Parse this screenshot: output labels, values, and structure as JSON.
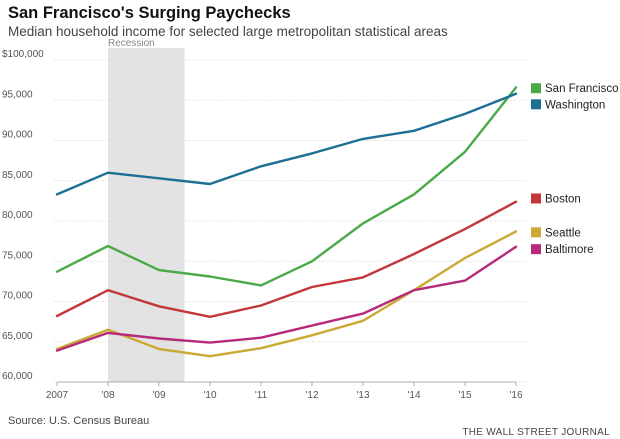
{
  "header": {
    "title": "San Francisco's Surging Paychecks",
    "subtitle": "Median household income for selected large metropolitan statistical areas"
  },
  "footer": {
    "source": "Source: U.S. Census Bureau",
    "publisher": "THE WALL STREET JOURNAL"
  },
  "chart_data": {
    "type": "line",
    "title": "San Francisco's Surging Paychecks",
    "subtitle": "Median household income for selected large metropolitan statistical areas",
    "x": [
      2007,
      2008,
      2009,
      2010,
      2011,
      2012,
      2013,
      2014,
      2015,
      2016
    ],
    "x_tick_labels": [
      "2007",
      "'08",
      "'09",
      "'10",
      "'11",
      "'12",
      "'13",
      "'14",
      "'15",
      "'16"
    ],
    "y_tick_values": [
      60000,
      65000,
      70000,
      75000,
      80000,
      85000,
      90000,
      95000,
      100000
    ],
    "y_tick_labels": [
      "60,000",
      "65,000",
      "70,000",
      "75,000",
      "80,000",
      "85,000",
      "90,000",
      "95,000",
      "$100,000"
    ],
    "ylim": [
      60000,
      100000
    ],
    "xlim": [
      2007,
      2016
    ],
    "grid": "horizontal",
    "legend": "right, labels at line ends",
    "shaded_region": {
      "label": "Recession",
      "x_start": 2008,
      "x_end": 2009.5,
      "color": "#e3e3e3"
    },
    "series": [
      {
        "name": "San Francisco",
        "color": "#4aaa47",
        "values": [
          73700,
          76900,
          73900,
          73100,
          72000,
          75000,
          79700,
          83300,
          88600,
          96600
        ]
      },
      {
        "name": "Washington",
        "color": "#1d6f94",
        "values": [
          83300,
          86000,
          85300,
          84600,
          86800,
          88400,
          90200,
          91200,
          93300,
          95800
        ]
      },
      {
        "name": "Boston",
        "color": "#c2383a",
        "values": [
          68200,
          71400,
          69400,
          68100,
          69500,
          71800,
          73000,
          75900,
          79000,
          82400
        ]
      },
      {
        "name": "Seattle",
        "color": "#cba935",
        "values": [
          64100,
          66500,
          64100,
          63200,
          64200,
          65800,
          67600,
          71400,
          75400,
          78700
        ]
      },
      {
        "name": "Baltimore",
        "color": "#b52a7b",
        "values": [
          63900,
          66100,
          65400,
          64900,
          65500,
          67000,
          68500,
          71400,
          72600,
          76800
        ]
      }
    ]
  }
}
